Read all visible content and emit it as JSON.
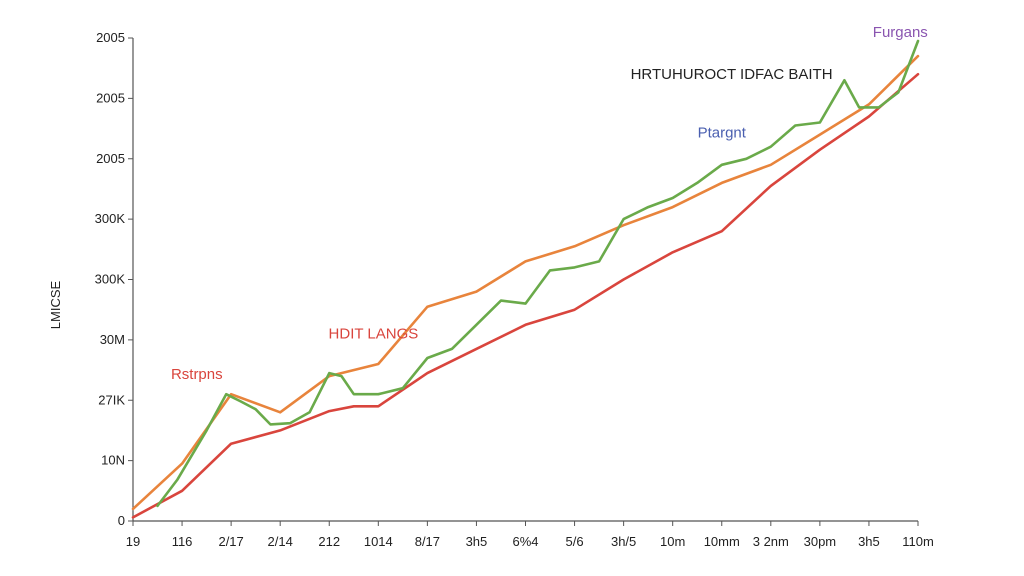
{
  "chart_data": {
    "type": "line",
    "title": "",
    "xlabel": "",
    "ylabel": "LMICSE",
    "x_tick_labels": [
      "19",
      "116",
      "2/17",
      "2/14",
      "212",
      "1014",
      "8/17",
      "3h5",
      "6%4",
      "5/6",
      "3h/5",
      "10m",
      "10mm",
      "3 2nm",
      "30pm",
      "3h5",
      "110m"
    ],
    "y_tick_labels": [
      "0",
      "10N",
      "27IK",
      "30M",
      "300K",
      "300K",
      "2005",
      "2005",
      "2005"
    ],
    "ylim": [
      0,
      8
    ],
    "xlim": [
      0,
      16
    ],
    "grid": false,
    "series": [
      {
        "name": "red",
        "color": "#d9453d",
        "points": [
          [
            0,
            0.06
          ],
          [
            1.0,
            0.5
          ],
          [
            2.0,
            1.28
          ],
          [
            3.0,
            1.5
          ],
          [
            4.0,
            1.82
          ],
          [
            4.5,
            1.9
          ],
          [
            5.0,
            1.9
          ],
          [
            6.0,
            2.45
          ],
          [
            7.0,
            2.85
          ],
          [
            8.0,
            3.25
          ],
          [
            9.0,
            3.5
          ],
          [
            10.0,
            4.0
          ],
          [
            11.0,
            4.45
          ],
          [
            12.0,
            4.8
          ],
          [
            13.0,
            5.55
          ],
          [
            14.0,
            6.15
          ],
          [
            15.0,
            6.7
          ],
          [
            16.0,
            7.4
          ]
        ]
      },
      {
        "name": "orange",
        "color": "#e8843c",
        "points": [
          [
            0,
            0.2
          ],
          [
            1.0,
            0.95
          ],
          [
            2.0,
            2.1
          ],
          [
            3.0,
            1.8
          ],
          [
            4.0,
            2.4
          ],
          [
            5.0,
            2.6
          ],
          [
            6.0,
            3.55
          ],
          [
            7.0,
            3.8
          ],
          [
            8.0,
            4.3
          ],
          [
            9.0,
            4.55
          ],
          [
            10.0,
            4.9
          ],
          [
            11.0,
            5.2
          ],
          [
            12.0,
            5.6
          ],
          [
            13.0,
            5.9
          ],
          [
            14.0,
            6.4
          ],
          [
            15.0,
            6.9
          ],
          [
            16.0,
            7.7
          ]
        ]
      },
      {
        "name": "green",
        "color": "#6aaa4a",
        "points": [
          [
            0.5,
            0.25
          ],
          [
            0.9,
            0.68
          ],
          [
            1.5,
            1.5
          ],
          [
            1.9,
            2.1
          ],
          [
            2.2,
            1.98
          ],
          [
            2.5,
            1.85
          ],
          [
            2.8,
            1.6
          ],
          [
            3.2,
            1.62
          ],
          [
            3.6,
            1.8
          ],
          [
            4.0,
            2.45
          ],
          [
            4.25,
            2.4
          ],
          [
            4.5,
            2.1
          ],
          [
            5.0,
            2.1
          ],
          [
            5.5,
            2.2
          ],
          [
            6.0,
            2.7
          ],
          [
            6.5,
            2.85
          ],
          [
            7.0,
            3.25
          ],
          [
            7.5,
            3.65
          ],
          [
            8.0,
            3.6
          ],
          [
            8.5,
            4.15
          ],
          [
            9.0,
            4.2
          ],
          [
            9.5,
            4.3
          ],
          [
            10.0,
            5.0
          ],
          [
            10.5,
            5.2
          ],
          [
            11.0,
            5.35
          ],
          [
            11.5,
            5.6
          ],
          [
            12.0,
            5.9
          ],
          [
            12.5,
            6.0
          ],
          [
            13.0,
            6.2
          ],
          [
            13.5,
            6.55
          ],
          [
            14.0,
            6.6
          ],
          [
            14.5,
            7.3
          ],
          [
            14.8,
            6.85
          ],
          [
            15.2,
            6.85
          ],
          [
            15.6,
            7.1
          ],
          [
            16.0,
            7.95
          ]
        ]
      }
    ],
    "annotations": [
      {
        "text": "Furgans",
        "color": "#8a55b0",
        "x": 16.2,
        "y": 8.02
      },
      {
        "text": "HRTUHUROCT IDFAC BAITH",
        "color": "#222222",
        "x": 12.2,
        "y": 7.32
      },
      {
        "text": "Ptargnt",
        "color": "#4a5fb0",
        "x": 12.0,
        "y": 6.35
      },
      {
        "text": "HDIT LANGS",
        "color": "#d9453d",
        "x": 4.9,
        "y": 3.02
      },
      {
        "text": "Rstrpns",
        "color": "#d9453d",
        "x": 1.3,
        "y": 2.35
      }
    ]
  }
}
